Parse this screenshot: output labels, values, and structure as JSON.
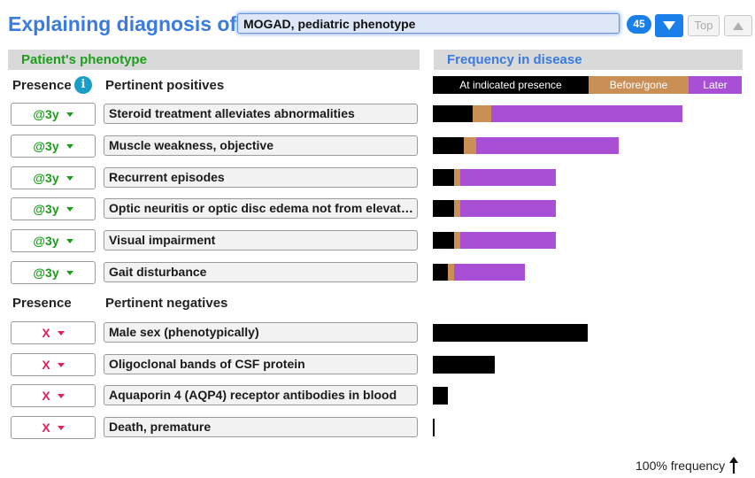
{
  "header": {
    "title": "Explaining diagnosis of",
    "diagnosis": "MOGAD, pediatric phenotype",
    "count": "45",
    "top_label": "Top"
  },
  "sections": {
    "left": "Patient's phenotype",
    "right": "Frequency in disease"
  },
  "columns": {
    "presence": "Presence",
    "info": "i",
    "positives": "Pertinent positives",
    "negatives": "Pertinent negatives"
  },
  "legend": {
    "present": "At indicated presence",
    "before": "Before/gone",
    "later": "Later"
  },
  "colors": {
    "present": "#000000",
    "before": "#c98f55",
    "later": "#a84fd6"
  },
  "positives": [
    {
      "presence": "@3y",
      "finding": "Steroid treatment alleviates abnormalities",
      "present": 0.13,
      "before": 0.06,
      "later": 0.62
    },
    {
      "presence": "@3y",
      "finding": "Muscle weakness, objective",
      "present": 0.1,
      "before": 0.04,
      "later": 0.46
    },
    {
      "presence": "@3y",
      "finding": "Recurrent episodes",
      "present": 0.07,
      "before": 0.02,
      "later": 0.31
    },
    {
      "presence": "@3y",
      "finding": "Optic neuritis or optic disc edema not from elevated intracranial pressure",
      "present": 0.07,
      "before": 0.02,
      "later": 0.31
    },
    {
      "presence": "@3y",
      "finding": "Visual impairment",
      "present": 0.07,
      "before": 0.02,
      "later": 0.31
    },
    {
      "presence": "@3y",
      "finding": "Gait disturbance",
      "present": 0.05,
      "before": 0.02,
      "later": 0.23
    }
  ],
  "negatives": [
    {
      "presence": "X",
      "finding": "Male sex (phenotypically)",
      "present": 0.5
    },
    {
      "presence": "X",
      "finding": "Oligoclonal bands of CSF protein",
      "present": 0.2
    },
    {
      "presence": "X",
      "finding": "Aquaporin 4 (AQP4) receptor antibodies in blood",
      "present": 0.05
    },
    {
      "presence": "X",
      "finding": "Death, premature",
      "present": 0.005
    }
  ],
  "footer": {
    "scale_label": "100% frequency"
  }
}
